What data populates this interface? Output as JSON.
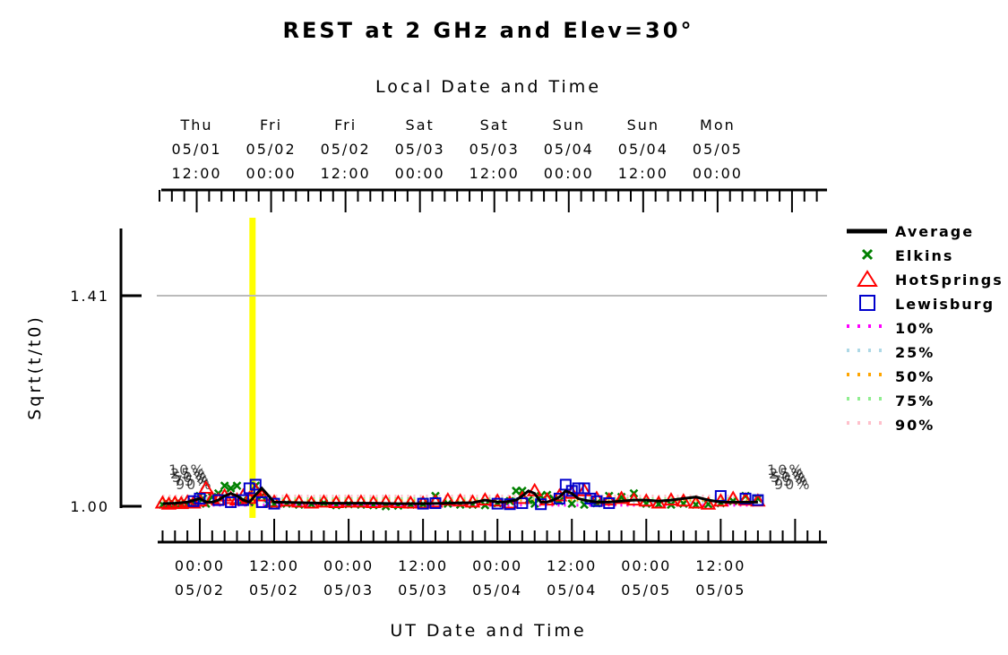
{
  "chart_data": {
    "type": "scatter",
    "title": "REST at 2 GHz and Elev=30°",
    "top_axis_label": "Local Date and Time",
    "xlabel": "UT Date and Time",
    "ylabel": "Sqrt(t/t0)",
    "y_ticks": [
      "1.00",
      "1.41"
    ],
    "ylim": [
      1.0,
      1.55
    ],
    "reference_line": 1.41,
    "x_range_ut_hours": [
      -6.5,
      101
    ],
    "highlight_ut_hours": 8.5,
    "bottom_ticks": [
      {
        "t": 0,
        "time": "00:00",
        "date": "05/02"
      },
      {
        "t": 12,
        "time": "12:00",
        "date": "05/02"
      },
      {
        "t": 24,
        "time": "00:00",
        "date": "05/03"
      },
      {
        "t": 36,
        "time": "12:00",
        "date": "05/03"
      },
      {
        "t": 48,
        "time": "00:00",
        "date": "05/04"
      },
      {
        "t": 60,
        "time": "12:00",
        "date": "05/04"
      },
      {
        "t": 72,
        "time": "00:00",
        "date": "05/05"
      },
      {
        "t": 84,
        "time": "12:00",
        "date": "05/05"
      }
    ],
    "top_ticks": [
      {
        "t": -0.5,
        "day": "Thu",
        "date": "05/01",
        "time": "12:00"
      },
      {
        "t": 11.5,
        "day": "Fri",
        "date": "05/02",
        "time": "00:00"
      },
      {
        "t": 23.5,
        "day": "Fri",
        "date": "05/02",
        "time": "12:00"
      },
      {
        "t": 35.5,
        "day": "Sat",
        "date": "05/03",
        "time": "00:00"
      },
      {
        "t": 47.5,
        "day": "Sat",
        "date": "05/03",
        "time": "12:00"
      },
      {
        "t": 59.5,
        "day": "Sun",
        "date": "05/04",
        "time": "00:00"
      },
      {
        "t": 71.5,
        "day": "Sun",
        "date": "05/04",
        "time": "12:00"
      },
      {
        "t": 83.5,
        "day": "Mon",
        "date": "05/05",
        "time": "00:00"
      }
    ],
    "legend": [
      {
        "name": "Average",
        "marker": "line",
        "color": "#000000"
      },
      {
        "name": "Elkins",
        "marker": "x",
        "color": "#008000"
      },
      {
        "name": "HotSprings",
        "marker": "triangle",
        "color": "#ff0000"
      },
      {
        "name": "Lewisburg",
        "marker": "square",
        "color": "#0000cc"
      },
      {
        "name": "10%",
        "marker": "dotted",
        "color": "#ff00ff"
      },
      {
        "name": "25%",
        "marker": "dotted",
        "color": "#add8e6"
      },
      {
        "name": "50%",
        "marker": "dotted",
        "color": "#ffa500"
      },
      {
        "name": "75%",
        "marker": "dotted",
        "color": "#90ee90"
      },
      {
        "name": "90%",
        "marker": "dotted",
        "color": "#ffc0cb"
      }
    ],
    "series": [
      {
        "name": "Average",
        "color": "#000000",
        "x": [
          -6,
          -4,
          -2,
          0,
          1,
          2,
          3,
          4,
          5,
          6,
          7,
          8,
          9,
          10,
          12,
          16,
          20,
          24,
          28,
          32,
          36,
          40,
          44,
          46,
          48,
          49,
          50,
          51,
          52,
          53,
          54,
          55,
          56,
          57,
          58,
          59,
          60,
          61,
          62,
          63,
          64,
          66,
          68,
          70,
          72,
          74,
          76,
          78,
          80,
          82,
          84,
          86,
          88,
          90
        ],
        "y": [
          1.005,
          1.006,
          1.008,
          1.015,
          1.008,
          1.008,
          1.012,
          1.02,
          1.025,
          1.02,
          1.012,
          1.008,
          1.022,
          1.035,
          1.008,
          1.007,
          1.006,
          1.006,
          1.006,
          1.005,
          1.005,
          1.006,
          1.007,
          1.012,
          1.008,
          1.008,
          1.01,
          1.012,
          1.02,
          1.03,
          1.025,
          1.008,
          1.008,
          1.012,
          1.018,
          1.03,
          1.025,
          1.015,
          1.012,
          1.01,
          1.008,
          1.008,
          1.01,
          1.012,
          1.012,
          1.01,
          1.012,
          1.015,
          1.018,
          1.012,
          1.008,
          1.008,
          1.008,
          1.008
        ]
      },
      {
        "name": "Elkins",
        "color": "#008000",
        "x": [
          -6,
          -5,
          -4,
          -3,
          -2,
          -1,
          0,
          0.5,
          1,
          2,
          3,
          4,
          5,
          6,
          7,
          8,
          9,
          10,
          11,
          12,
          14,
          16,
          18,
          20,
          22,
          24,
          26,
          28,
          30,
          32,
          34,
          36,
          38,
          40,
          42,
          44,
          46,
          48,
          50,
          51,
          52,
          53,
          54,
          55,
          56,
          57,
          58,
          60,
          62,
          64,
          66,
          68,
          70,
          72,
          74,
          76,
          78,
          80,
          82,
          84,
          86,
          88,
          90
        ],
        "y": [
          1.003,
          1.004,
          1.003,
          1.005,
          1.004,
          1.006,
          1.02,
          1.015,
          1.005,
          1.018,
          1.025,
          1.04,
          1.035,
          1.04,
          1.012,
          1.008,
          1.04,
          1.02,
          1.005,
          1.004,
          1.005,
          1.003,
          1.004,
          1.006,
          1.002,
          1.004,
          1.003,
          1.002,
          1.0,
          1.001,
          1.003,
          1.004,
          1.02,
          1.005,
          1.003,
          1.003,
          1.002,
          1.006,
          1.01,
          1.03,
          1.03,
          1.012,
          1.005,
          1.02,
          1.022,
          1.015,
          1.01,
          1.005,
          1.003,
          1.006,
          1.02,
          1.018,
          1.025,
          1.005,
          1.004,
          1.003,
          1.005,
          1.003,
          1.004,
          1.006,
          1.01,
          1.02,
          1.015
        ]
      },
      {
        "name": "HotSprings",
        "color": "#ff0000",
        "x": [
          -6,
          -5,
          -4,
          -3,
          -2,
          -1,
          0,
          1,
          2,
          3,
          4,
          5,
          6,
          7,
          8,
          9,
          10,
          12,
          14,
          16,
          18,
          20,
          22,
          24,
          26,
          28,
          30,
          32,
          34,
          36,
          38,
          40,
          42,
          44,
          46,
          48,
          50,
          52,
          54,
          56,
          58,
          60,
          62,
          64,
          66,
          68,
          70,
          72,
          74,
          76,
          78,
          80,
          82,
          84,
          86,
          88,
          90
        ],
        "y": [
          1.006,
          1.004,
          1.006,
          1.005,
          1.008,
          1.006,
          1.01,
          1.035,
          1.015,
          1.012,
          1.02,
          1.015,
          1.012,
          1.02,
          1.015,
          1.03,
          1.02,
          1.008,
          1.01,
          1.008,
          1.006,
          1.008,
          1.007,
          1.008,
          1.008,
          1.007,
          1.008,
          1.007,
          1.006,
          1.006,
          1.008,
          1.012,
          1.01,
          1.008,
          1.012,
          1.01,
          1.006,
          1.015,
          1.03,
          1.012,
          1.02,
          1.025,
          1.03,
          1.015,
          1.012,
          1.015,
          1.012,
          1.01,
          1.006,
          1.012,
          1.01,
          1.006,
          1.004,
          1.01,
          1.015,
          1.012,
          1.01
        ]
      },
      {
        "name": "Lewisburg",
        "color": "#0000cc",
        "x": [
          -1,
          0,
          3,
          5,
          7,
          8,
          9,
          10,
          12,
          36,
          38,
          48,
          50,
          52,
          55,
          58,
          59,
          60,
          61,
          62,
          63,
          64,
          66,
          84,
          88,
          90
        ],
        "y": [
          1.01,
          1.015,
          1.012,
          1.008,
          1.012,
          1.035,
          1.042,
          1.008,
          1.005,
          1.005,
          1.006,
          1.005,
          1.004,
          1.006,
          1.004,
          1.015,
          1.042,
          1.03,
          1.035,
          1.035,
          1.015,
          1.01,
          1.006,
          1.02,
          1.015,
          1.012
        ]
      },
      {
        "name": "10%",
        "color": "#ff00ff",
        "x": [
          -6,
          90
        ],
        "y": [
          1.002,
          1.002
        ]
      },
      {
        "name": "25%",
        "color": "#add8e6",
        "x": [
          -6,
          90
        ],
        "y": [
          1.008,
          1.008
        ]
      },
      {
        "name": "50%",
        "color": "#ffa500",
        "x": [
          -6,
          90
        ],
        "y": [
          1.012,
          1.012
        ]
      },
      {
        "name": "75%",
        "color": "#90ee90",
        "x": [
          -6,
          90
        ],
        "y": [
          1.016,
          1.016
        ]
      },
      {
        "name": "90%",
        "color": "#ffc0cb",
        "x": [
          -6,
          90
        ],
        "y": [
          1.02,
          1.02
        ]
      }
    ],
    "percentile_labels": [
      "10%",
      "25%",
      "50%",
      "75%",
      "90%"
    ],
    "grid": false,
    "legend_position": "right"
  }
}
